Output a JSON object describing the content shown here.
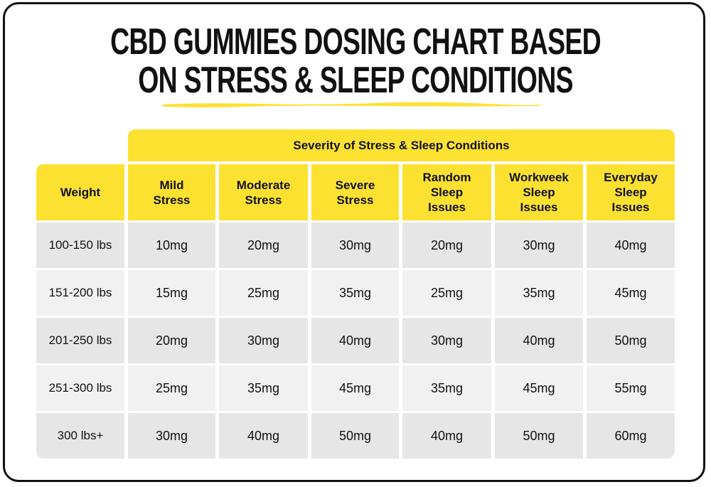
{
  "title": {
    "line1": "CBD GUMMIES DOSING CHART BASED",
    "line2": "ON STRESS & SLEEP CONDITIONS"
  },
  "colors": {
    "accent": "#fde131",
    "row_dark": "#e6e6e6",
    "row_light": "#f1f1f1",
    "text": "#111111"
  },
  "table": {
    "group_header": "Severity of Stress & Sleep Conditions",
    "weight_header": "Weight",
    "columns": [
      {
        "line1": "Mild",
        "line2": "Stress",
        "line3": ""
      },
      {
        "line1": "Moderate",
        "line2": "Stress",
        "line3": ""
      },
      {
        "line1": "Severe",
        "line2": "Stress",
        "line3": ""
      },
      {
        "line1": "Random",
        "line2": "Sleep",
        "line3": "Issues"
      },
      {
        "line1": "Workweek",
        "line2": "Sleep",
        "line3": "Issues"
      },
      {
        "line1": "Everyday",
        "line2": "Sleep",
        "line3": "Issues"
      }
    ],
    "rows": [
      {
        "weight": "100-150 lbs",
        "values": [
          "10mg",
          "20mg",
          "30mg",
          "20mg",
          "30mg",
          "40mg"
        ]
      },
      {
        "weight": "151-200 lbs",
        "values": [
          "15mg",
          "25mg",
          "35mg",
          "25mg",
          "35mg",
          "45mg"
        ]
      },
      {
        "weight": "201-250 lbs",
        "values": [
          "20mg",
          "30mg",
          "40mg",
          "30mg",
          "40mg",
          "50mg"
        ]
      },
      {
        "weight": "251-300 lbs",
        "values": [
          "25mg",
          "35mg",
          "45mg",
          "35mg",
          "45mg",
          "55mg"
        ]
      },
      {
        "weight": "300 lbs+",
        "values": [
          "30mg",
          "40mg",
          "50mg",
          "40mg",
          "50mg",
          "60mg"
        ]
      }
    ]
  }
}
